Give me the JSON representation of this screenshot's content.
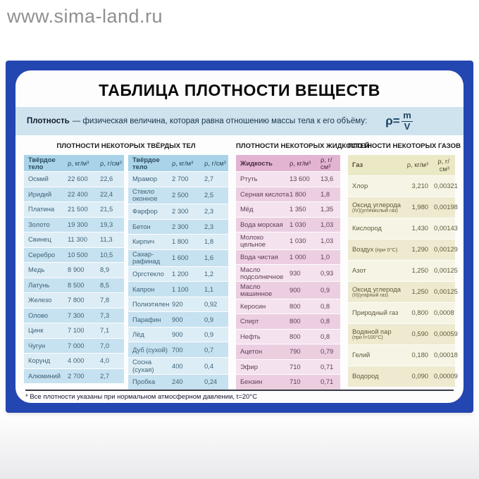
{
  "watermark": "www.sima-land.ru",
  "poster": {
    "title": "ТАБЛИЦА ПЛОТНОСТИ ВЕЩЕСТВ",
    "definition": {
      "term": "Плотность",
      "text": "— физическая величина, которая равна отношению массы тела к его объёму:",
      "formula": {
        "rho": "ρ=",
        "numerator": "m",
        "denominator": "V"
      }
    },
    "sections": {
      "solids": {
        "title": "ПЛОТНОСТИ НЕКОТОРЫХ ТВЁРДЫХ ТЕЛ",
        "columns": [
          "Твёрдое тело",
          "ρ, кг/м³",
          "ρ, г/см³"
        ],
        "left_rows": [
          [
            "Осмий",
            "22 600",
            "22,6"
          ],
          [
            "Иридий",
            "22 400",
            "22,4"
          ],
          [
            "Платина",
            "21 500",
            "21,5"
          ],
          [
            "Золото",
            "19 300",
            "19,3"
          ],
          [
            "Свинец",
            "11 300",
            "11,3"
          ],
          [
            "Серебро",
            "10 500",
            "10,5"
          ],
          [
            "Медь",
            "8 900",
            "8,9"
          ],
          [
            "Латунь",
            "8 500",
            "8,5"
          ],
          [
            "Железо",
            "7 800",
            "7,8"
          ],
          [
            "Олово",
            "7 300",
            "7,3"
          ],
          [
            "Цинк",
            "7 100",
            "7,1"
          ],
          [
            "Чугун",
            "7 000",
            "7,0"
          ],
          [
            "Корунд",
            "4 000",
            "4,0"
          ],
          [
            "Алюминий",
            "2 700",
            "2,7"
          ]
        ],
        "right_rows": [
          [
            "Мрамор",
            "2 700",
            "2,7"
          ],
          [
            "Стекло\nоконное",
            "2 500",
            "2,5"
          ],
          [
            "Фарфор",
            "2 300",
            "2,3"
          ],
          [
            "Бетон",
            "2 300",
            "2,3"
          ],
          [
            "Кирпич",
            "1 800",
            "1,8"
          ],
          [
            "Сахар-\nрафинад",
            "1 600",
            "1,6"
          ],
          [
            "Оргстекло",
            "1 200",
            "1,2"
          ],
          [
            "Капрон",
            "1 100",
            "1,1"
          ],
          [
            "Полиэтилен",
            "920",
            "0,92"
          ],
          [
            "Парафин",
            "900",
            "0,9"
          ],
          [
            "Лёд",
            "900",
            "0,9"
          ],
          [
            "Дуб (сухой)",
            "700",
            "0,7"
          ],
          [
            "Сосна (сухая)",
            "400",
            "0,4"
          ],
          [
            "Пробка",
            "240",
            "0,24"
          ]
        ]
      },
      "liquids": {
        "title": "ПЛОТНОСТИ НЕКОТОРЫХ ЖИДКОСТЕЙ",
        "columns": [
          "Жидкость",
          "ρ, кг/м³",
          "ρ, г/см³"
        ],
        "rows": [
          [
            "Ртуть",
            "13 600",
            "13,6"
          ],
          [
            "Серная кислота",
            "1 800",
            "1,8"
          ],
          [
            "Мёд",
            "1 350",
            "1,35"
          ],
          [
            "Вода морская",
            "1 030",
            "1,03"
          ],
          [
            "Молоко\nцельное",
            "1 030",
            "1,03"
          ],
          [
            "Вода чистая",
            "1 000",
            "1,0"
          ],
          [
            "Масло\nподсолнечное",
            "930",
            "0,93"
          ],
          [
            "Масло\nмашинное",
            "900",
            "0,9"
          ],
          [
            "Керосин",
            "800",
            "0,8"
          ],
          [
            "Спирт",
            "800",
            "0,8"
          ],
          [
            "Нефть",
            "800",
            "0,8"
          ],
          [
            "Ацетон",
            "790",
            "0,79"
          ],
          [
            "Эфир",
            "710",
            "0,71"
          ],
          [
            "Бензин",
            "710",
            "0,71"
          ]
        ]
      },
      "gases": {
        "title": "ПЛОТНОСТИ НЕКОТОРЫХ ГАЗОВ",
        "columns": [
          "Газ",
          "ρ, кг/м³",
          "ρ, г/см³"
        ],
        "rows": [
          [
            "Хлор",
            "3,210",
            "0,00321"
          ],
          [
            {
              "t": "Оксид углерода",
              "s": "(IV)(углекислый газ)"
            },
            "1,980",
            "0,00198"
          ],
          [
            "Кислород",
            "1,430",
            "0,00143"
          ],
          [
            {
              "t": "Воздух",
              "si": "(при 0°С)"
            },
            "1,290",
            "0,00129"
          ],
          [
            "Азот",
            "1,250",
            "0,00125"
          ],
          [
            {
              "t": "Оксид углерода",
              "s": "(II)(угарный газ)"
            },
            "1,250",
            "0,00125"
          ],
          [
            "Природный газ",
            "0,800",
            "0,0008"
          ],
          [
            {
              "t": "Водяной пар",
              "s": "(при t=100°С)"
            },
            "0,590",
            "0,00059"
          ],
          [
            "Гелий",
            "0,180",
            "0,00018"
          ],
          [
            "Водород",
            "0,090",
            "0,00009"
          ]
        ]
      }
    },
    "footnote": "* Все плотности указаны при нормальном атмосферном давлении, t=20°C"
  },
  "colors": {
    "border_blue": "#2346b0",
    "definition_band": "#cfe3ee",
    "solids_header": "#a9d3e8",
    "solids_row_light": "#dcedf6",
    "solids_row_dark": "#c6e1f0",
    "liquids_header": "#e2b4d2",
    "liquids_row_light": "#f4e2ee",
    "liquids_row_dark": "#ebcfe1",
    "gases_header": "#ebe8c6",
    "gases_row_light": "#f6f4e4",
    "gases_row_dark": "#edead0"
  }
}
